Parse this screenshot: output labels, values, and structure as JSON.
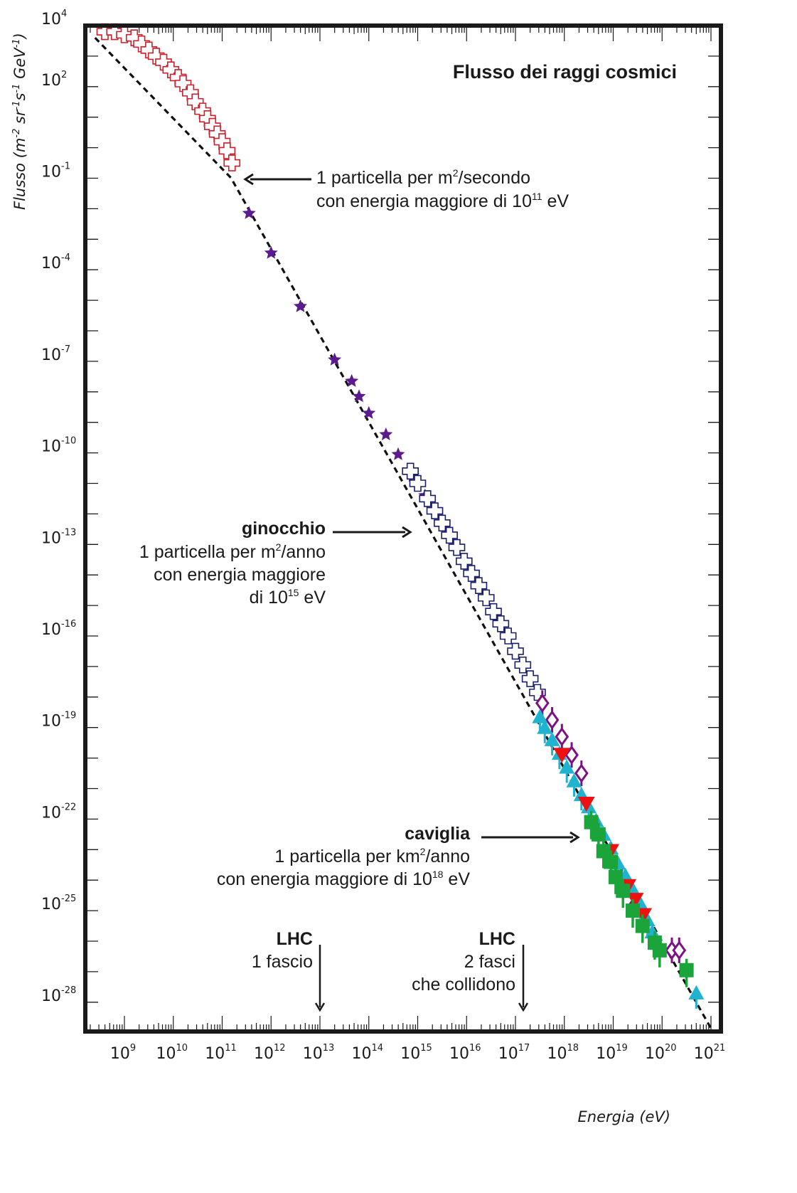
{
  "chart_data": {
    "type": "scatter",
    "title": "Flusso dei raggi cosmici",
    "xlabel": "Energia (eV)",
    "ylabel": "Flusso (m-2 sr-1 s-1 GeV-1)",
    "ylabel_parts": {
      "prefix": "Flusso (m",
      "m_exp": "-2",
      "sr": " sr",
      "sr_exp": "-1",
      "s": "s",
      "s_exp": "-1",
      "gev": " GeV",
      "gev_exp": "-1",
      "suffix": ")"
    },
    "x_scale": "log",
    "y_scale": "log",
    "xlim_log10": [
      8.2,
      21.2
    ],
    "ylim_log10": [
      -29.0,
      4.0
    ],
    "x_ticks": [
      {
        "base": "10",
        "exp": "9"
      },
      {
        "base": "10",
        "exp": "10"
      },
      {
        "base": "10",
        "exp": "11"
      },
      {
        "base": "10",
        "exp": "12"
      },
      {
        "base": "10",
        "exp": "13"
      },
      {
        "base": "10",
        "exp": "14"
      },
      {
        "base": "10",
        "exp": "15"
      },
      {
        "base": "10",
        "exp": "16"
      },
      {
        "base": "10",
        "exp": "17"
      },
      {
        "base": "10",
        "exp": "18"
      },
      {
        "base": "10",
        "exp": "19"
      },
      {
        "base": "10",
        "exp": "20"
      },
      {
        "base": "10",
        "exp": "21"
      }
    ],
    "y_ticks": [
      {
        "base": "10",
        "exp": "4"
      },
      {
        "base": "10",
        "exp": "2"
      },
      {
        "base": "10",
        "exp": "-1"
      },
      {
        "base": "10",
        "exp": "-4"
      },
      {
        "base": "10",
        "exp": "-7"
      },
      {
        "base": "10",
        "exp": "-10"
      },
      {
        "base": "10",
        "exp": "-13"
      },
      {
        "base": "10",
        "exp": "-16"
      },
      {
        "base": "10",
        "exp": "-19"
      },
      {
        "base": "10",
        "exp": "-22"
      },
      {
        "base": "10",
        "exp": "-25"
      },
      {
        "base": "10",
        "exp": "-28"
      }
    ],
    "grid": false,
    "legend": "none",
    "series": [
      {
        "name": "power-law fit",
        "style": "dashed-line",
        "color": "#111111",
        "points_log10": [
          [
            8.4,
            3.6
          ],
          [
            11.18,
            -0.99
          ],
          [
            21.05,
            -29.0
          ]
        ]
      },
      {
        "name": "low-energy data (red open crosses)",
        "marker": "open-cross",
        "color": "#cc1f2a",
        "points_log10": [
          [
            8.6,
            3.8
          ],
          [
            8.8,
            3.8
          ],
          [
            9.0,
            3.7
          ],
          [
            9.2,
            3.6
          ],
          [
            9.35,
            3.4
          ],
          [
            9.5,
            3.2
          ],
          [
            9.65,
            3.0
          ],
          [
            9.8,
            2.8
          ],
          [
            9.95,
            2.55
          ],
          [
            10.1,
            2.3
          ],
          [
            10.2,
            2.1
          ],
          [
            10.35,
            1.8
          ],
          [
            10.45,
            1.5
          ],
          [
            10.6,
            1.2
          ],
          [
            10.7,
            0.95
          ],
          [
            10.8,
            0.7
          ],
          [
            10.9,
            0.45
          ],
          [
            11.0,
            0.2
          ],
          [
            11.1,
            -0.1
          ],
          [
            11.2,
            -0.5
          ]
        ]
      },
      {
        "name": "direct measurements (purple stars)",
        "marker": "filled-star",
        "color": "#5b1a8e",
        "points_log10": [
          [
            11.55,
            -2.15
          ],
          [
            12.0,
            -3.45
          ],
          [
            12.6,
            -5.2
          ],
          [
            13.3,
            -6.95
          ],
          [
            13.65,
            -7.65
          ],
          [
            13.8,
            -8.15
          ],
          [
            14.0,
            -8.7
          ],
          [
            14.35,
            -9.4
          ],
          [
            14.6,
            -10.05
          ],
          [
            14.9,
            -10.75
          ],
          [
            15.15,
            -11.4
          ]
        ]
      },
      {
        "name": "knee data (navy open crosses)",
        "marker": "open-cross",
        "color": "#1b1f6b",
        "points_log10": [
          [
            14.85,
            -10.6
          ],
          [
            15.0,
            -11.0
          ],
          [
            15.2,
            -11.5
          ],
          [
            15.35,
            -11.9
          ],
          [
            15.5,
            -12.3
          ],
          [
            15.65,
            -12.7
          ],
          [
            15.8,
            -13.1
          ],
          [
            15.95,
            -13.55
          ],
          [
            16.1,
            -13.95
          ],
          [
            16.25,
            -14.35
          ],
          [
            16.4,
            -14.75
          ],
          [
            16.55,
            -15.2
          ],
          [
            16.7,
            -15.6
          ],
          [
            16.85,
            -16.0
          ],
          [
            17.0,
            -16.5
          ],
          [
            17.15,
            -16.95
          ],
          [
            17.3,
            -17.4
          ],
          [
            17.45,
            -17.85
          ]
        ]
      },
      {
        "name": "purple open diamonds",
        "marker": "open-diamond",
        "color": "#7b1185",
        "points_log10": [
          [
            17.55,
            -18.2
          ],
          [
            17.75,
            -18.75
          ],
          [
            17.95,
            -19.3
          ],
          [
            18.15,
            -19.9
          ],
          [
            18.35,
            -20.5
          ],
          [
            19.45,
            -24.8
          ],
          [
            20.2,
            -26.3
          ],
          [
            20.35,
            -26.3
          ]
        ]
      },
      {
        "name": "cyan triangles up",
        "marker": "filled-triangle-up",
        "color": "#1fb3d0",
        "points_log10": [
          [
            17.5,
            -18.65
          ],
          [
            17.6,
            -19.0
          ],
          [
            17.75,
            -19.4
          ],
          [
            17.9,
            -19.85
          ],
          [
            18.05,
            -20.3
          ],
          [
            18.2,
            -20.75
          ],
          [
            18.35,
            -21.2
          ],
          [
            18.5,
            -21.6
          ],
          [
            18.65,
            -22.05
          ],
          [
            18.8,
            -22.5
          ],
          [
            18.95,
            -22.95
          ],
          [
            19.1,
            -23.45
          ],
          [
            19.25,
            -23.85
          ],
          [
            19.4,
            -24.3
          ],
          [
            19.55,
            -24.75
          ],
          [
            19.7,
            -25.3
          ],
          [
            19.8,
            -25.7
          ],
          [
            20.7,
            -27.7
          ]
        ]
      },
      {
        "name": "red triangles down",
        "marker": "filled-triangle-down",
        "color": "#ee1111",
        "points_log10": [
          [
            17.95,
            -19.9
          ],
          [
            18.45,
            -21.5
          ],
          [
            18.95,
            -23.05
          ],
          [
            19.3,
            -24.2
          ],
          [
            19.45,
            -24.65
          ],
          [
            19.62,
            -25.15
          ]
        ]
      },
      {
        "name": "green squares",
        "marker": "filled-square",
        "color": "#1aa43a",
        "points_log10": [
          [
            18.55,
            -22.1
          ],
          [
            18.7,
            -22.5
          ],
          [
            18.8,
            -23.05
          ],
          [
            18.95,
            -23.4
          ],
          [
            19.05,
            -23.9
          ],
          [
            19.2,
            -24.35
          ],
          [
            19.4,
            -25.0
          ],
          [
            19.6,
            -25.5
          ],
          [
            19.85,
            -26.05
          ],
          [
            19.95,
            -26.3
          ],
          [
            20.5,
            -26.95
          ]
        ]
      }
    ]
  },
  "annotations": {
    "second": {
      "line1_pre": "1 particella per m",
      "line1_sup": "2",
      "line1_post": "/secondo",
      "line2_pre": "con energia maggiore di 10",
      "line2_sup": "11",
      "line2_post": " eV"
    },
    "knee": {
      "heading": "ginocchio",
      "line1_pre": "1 particella per m",
      "line1_sup": "2",
      "line1_post": "/anno",
      "line2": "con energia maggiore",
      "line3_pre": "di 10",
      "line3_sup": "15",
      "line3_post": " eV"
    },
    "ankle": {
      "heading": "caviglia",
      "line1_pre": "1 particella per km",
      "line1_sup": "2",
      "line1_post": "/anno",
      "line2_pre": "con energia maggiore di 10",
      "line2_sup": "18",
      "line2_post": " eV"
    },
    "lhc1": {
      "heading": "LHC",
      "line1": "1 fascio"
    },
    "lhc2": {
      "heading": "LHC",
      "line1": "2 fasci",
      "line2": "che collidono"
    }
  }
}
